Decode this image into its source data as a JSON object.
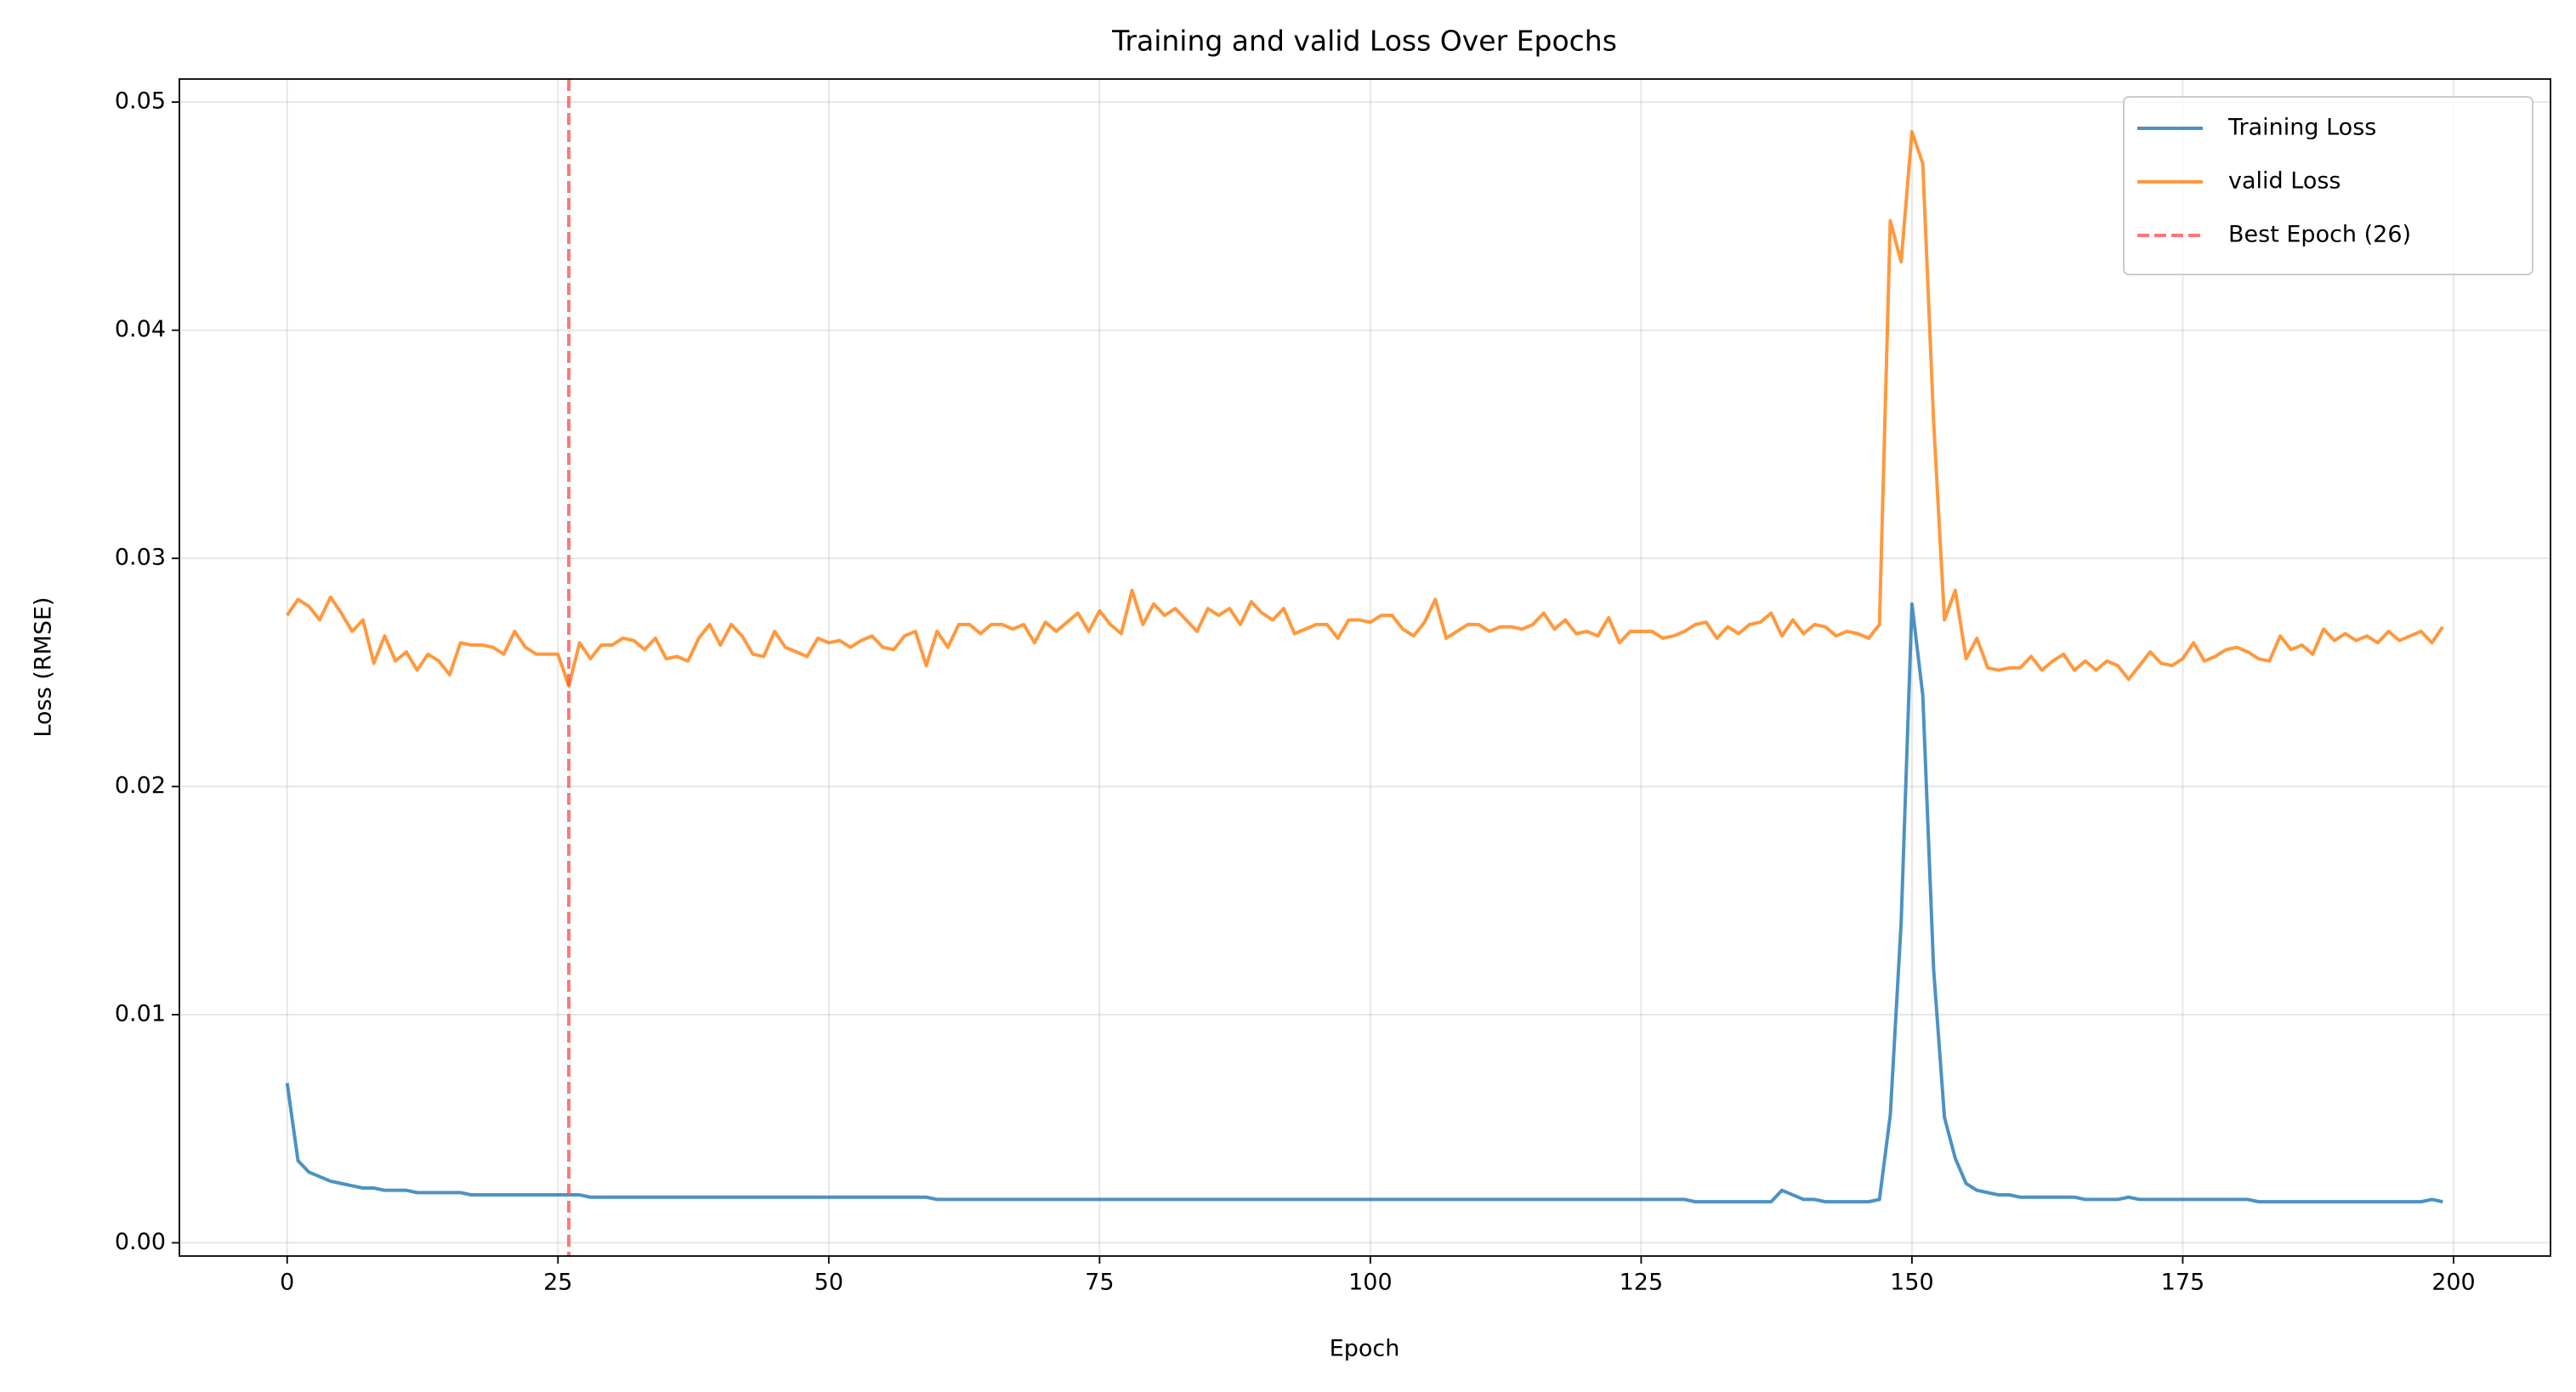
{
  "chart_data": {
    "type": "line",
    "title": "Training and valid Loss Over Epochs",
    "x_label": "Epoch",
    "y_label": "Loss (RMSE)",
    "x": [
      0,
      1,
      2,
      3,
      4,
      5,
      6,
      7,
      8,
      9,
      10,
      11,
      12,
      13,
      14,
      15,
      16,
      17,
      18,
      19,
      20,
      21,
      22,
      23,
      24,
      25,
      26,
      27,
      28,
      29,
      30,
      31,
      32,
      33,
      34,
      35,
      36,
      37,
      38,
      39,
      40,
      41,
      42,
      43,
      44,
      45,
      46,
      47,
      48,
      49,
      50,
      51,
      52,
      53,
      54,
      55,
      56,
      57,
      58,
      59,
      60,
      61,
      62,
      63,
      64,
      65,
      66,
      67,
      68,
      69,
      70,
      71,
      72,
      73,
      74,
      75,
      76,
      77,
      78,
      79,
      80,
      81,
      82,
      83,
      84,
      85,
      86,
      87,
      88,
      89,
      90,
      91,
      92,
      93,
      94,
      95,
      96,
      97,
      98,
      99,
      100,
      101,
      102,
      103,
      104,
      105,
      106,
      107,
      108,
      109,
      110,
      111,
      112,
      113,
      114,
      115,
      116,
      117,
      118,
      119,
      120,
      121,
      122,
      123,
      124,
      125,
      126,
      127,
      128,
      129,
      130,
      131,
      132,
      133,
      134,
      135,
      136,
      137,
      138,
      139,
      140,
      141,
      142,
      143,
      144,
      145,
      146,
      147,
      148,
      149,
      150,
      151,
      152,
      153,
      154,
      155,
      156,
      157,
      158,
      159,
      160,
      161,
      162,
      163,
      164,
      165,
      166,
      167,
      168,
      169,
      170,
      171,
      172,
      173,
      174,
      175,
      176,
      177,
      178,
      179,
      180,
      181,
      182,
      183,
      184,
      185,
      186,
      187,
      188,
      189,
      190,
      191,
      192,
      193,
      194,
      195,
      196,
      197,
      198,
      199
    ],
    "series": [
      {
        "name": "Training Loss",
        "color": "#1f77b4",
        "values": [
          0.007,
          0.0036,
          0.0031,
          0.0029,
          0.0027,
          0.0026,
          0.0025,
          0.0024,
          0.0024,
          0.0023,
          0.0023,
          0.0023,
          0.0022,
          0.0022,
          0.0022,
          0.0022,
          0.0022,
          0.0021,
          0.0021,
          0.0021,
          0.0021,
          0.0021,
          0.0021,
          0.0021,
          0.0021,
          0.0021,
          0.0021,
          0.0021,
          0.002,
          0.002,
          0.002,
          0.002,
          0.002,
          0.002,
          0.002,
          0.002,
          0.002,
          0.002,
          0.002,
          0.002,
          0.002,
          0.002,
          0.002,
          0.002,
          0.002,
          0.002,
          0.002,
          0.002,
          0.002,
          0.002,
          0.002,
          0.002,
          0.002,
          0.002,
          0.002,
          0.002,
          0.002,
          0.002,
          0.002,
          0.002,
          0.0019,
          0.0019,
          0.0019,
          0.0019,
          0.0019,
          0.0019,
          0.0019,
          0.0019,
          0.0019,
          0.0019,
          0.0019,
          0.0019,
          0.0019,
          0.0019,
          0.0019,
          0.0019,
          0.0019,
          0.0019,
          0.0019,
          0.0019,
          0.0019,
          0.0019,
          0.0019,
          0.0019,
          0.0019,
          0.0019,
          0.0019,
          0.0019,
          0.0019,
          0.0019,
          0.0019,
          0.0019,
          0.0019,
          0.0019,
          0.0019,
          0.0019,
          0.0019,
          0.0019,
          0.0019,
          0.0019,
          0.0019,
          0.0019,
          0.0019,
          0.0019,
          0.0019,
          0.0019,
          0.0019,
          0.0019,
          0.0019,
          0.0019,
          0.0019,
          0.0019,
          0.0019,
          0.0019,
          0.0019,
          0.0019,
          0.0019,
          0.0019,
          0.0019,
          0.0019,
          0.0019,
          0.0019,
          0.0019,
          0.0019,
          0.0019,
          0.0019,
          0.0019,
          0.0019,
          0.0019,
          0.0019,
          0.0018,
          0.0018,
          0.0018,
          0.0018,
          0.0018,
          0.0018,
          0.0018,
          0.0018,
          0.0023,
          0.0021,
          0.0019,
          0.0019,
          0.0018,
          0.0018,
          0.0018,
          0.0018,
          0.0018,
          0.0019,
          0.0056,
          0.014,
          0.028,
          0.024,
          0.012,
          0.0055,
          0.0037,
          0.0026,
          0.0023,
          0.0022,
          0.0021,
          0.0021,
          0.002,
          0.002,
          0.002,
          0.002,
          0.002,
          0.002,
          0.0019,
          0.0019,
          0.0019,
          0.0019,
          0.002,
          0.0019,
          0.0019,
          0.0019,
          0.0019,
          0.0019,
          0.0019,
          0.0019,
          0.0019,
          0.0019,
          0.0019,
          0.0019,
          0.0018,
          0.0018,
          0.0018,
          0.0018,
          0.0018,
          0.0018,
          0.0018,
          0.0018,
          0.0018,
          0.0018,
          0.0018,
          0.0018,
          0.0018,
          0.0018,
          0.0018,
          0.0018,
          0.0019,
          0.0018
        ]
      },
      {
        "name": "valid Loss",
        "color": "#ff7f0e",
        "values": [
          0.0275,
          0.0282,
          0.0279,
          0.0273,
          0.0283,
          0.0276,
          0.0268,
          0.0273,
          0.0254,
          0.0266,
          0.0255,
          0.0259,
          0.0251,
          0.0258,
          0.0255,
          0.0249,
          0.0263,
          0.0262,
          0.0262,
          0.0261,
          0.0258,
          0.0268,
          0.0261,
          0.0258,
          0.0258,
          0.0258,
          0.0244,
          0.0263,
          0.0256,
          0.0262,
          0.0262,
          0.0265,
          0.0264,
          0.026,
          0.0265,
          0.0256,
          0.0257,
          0.0255,
          0.0265,
          0.0271,
          0.0262,
          0.0271,
          0.0266,
          0.0258,
          0.0257,
          0.0268,
          0.0261,
          0.0259,
          0.0257,
          0.0265,
          0.0263,
          0.0264,
          0.0261,
          0.0264,
          0.0266,
          0.0261,
          0.026,
          0.0266,
          0.0268,
          0.0253,
          0.0268,
          0.0261,
          0.0271,
          0.0271,
          0.0267,
          0.0271,
          0.0271,
          0.0269,
          0.0271,
          0.0263,
          0.0272,
          0.0268,
          0.0272,
          0.0276,
          0.0268,
          0.0277,
          0.0271,
          0.0267,
          0.0286,
          0.0271,
          0.028,
          0.0275,
          0.0278,
          0.0273,
          0.0268,
          0.0278,
          0.0275,
          0.0278,
          0.0271,
          0.0281,
          0.0276,
          0.0273,
          0.0278,
          0.0267,
          0.0269,
          0.0271,
          0.0271,
          0.0265,
          0.0273,
          0.0273,
          0.0272,
          0.0275,
          0.0275,
          0.0269,
          0.0266,
          0.0272,
          0.0282,
          0.0265,
          0.0268,
          0.0271,
          0.0271,
          0.0268,
          0.027,
          0.027,
          0.0269,
          0.0271,
          0.0276,
          0.0269,
          0.0273,
          0.0267,
          0.0268,
          0.0266,
          0.0274,
          0.0263,
          0.0268,
          0.0268,
          0.0268,
          0.0265,
          0.0266,
          0.0268,
          0.0271,
          0.0272,
          0.0265,
          0.027,
          0.0267,
          0.0271,
          0.0272,
          0.0276,
          0.0266,
          0.0273,
          0.0267,
          0.0271,
          0.027,
          0.0266,
          0.0268,
          0.0267,
          0.0265,
          0.0271,
          0.0448,
          0.043,
          0.0487,
          0.0473,
          0.036,
          0.0273,
          0.0286,
          0.0256,
          0.0265,
          0.0252,
          0.0251,
          0.0252,
          0.0252,
          0.0257,
          0.0251,
          0.0255,
          0.0258,
          0.0251,
          0.0255,
          0.0251,
          0.0255,
          0.0253,
          0.0247,
          0.0253,
          0.0259,
          0.0254,
          0.0253,
          0.0256,
          0.0263,
          0.0255,
          0.0257,
          0.026,
          0.0261,
          0.0259,
          0.0256,
          0.0255,
          0.0266,
          0.026,
          0.0262,
          0.0258,
          0.0269,
          0.0264,
          0.0267,
          0.0264,
          0.0266,
          0.0263,
          0.0268,
          0.0264,
          0.0266,
          0.0268,
          0.0263,
          0.027
        ]
      }
    ],
    "best_epoch": {
      "value": 26,
      "label": "Best Epoch (26)",
      "color": "#ff5555"
    },
    "xlim": [
      -9.95,
      208.95
    ],
    "ylim": [
      -0.00058,
      0.05101
    ],
    "xticks": [
      0,
      25,
      50,
      75,
      100,
      125,
      150,
      175,
      200
    ],
    "yticks": [
      {
        "value": 0,
        "label": "0.00"
      },
      0.01,
      0.02,
      0.03,
      0.04,
      0.05
    ],
    "grid": true,
    "legend": "upper right"
  }
}
